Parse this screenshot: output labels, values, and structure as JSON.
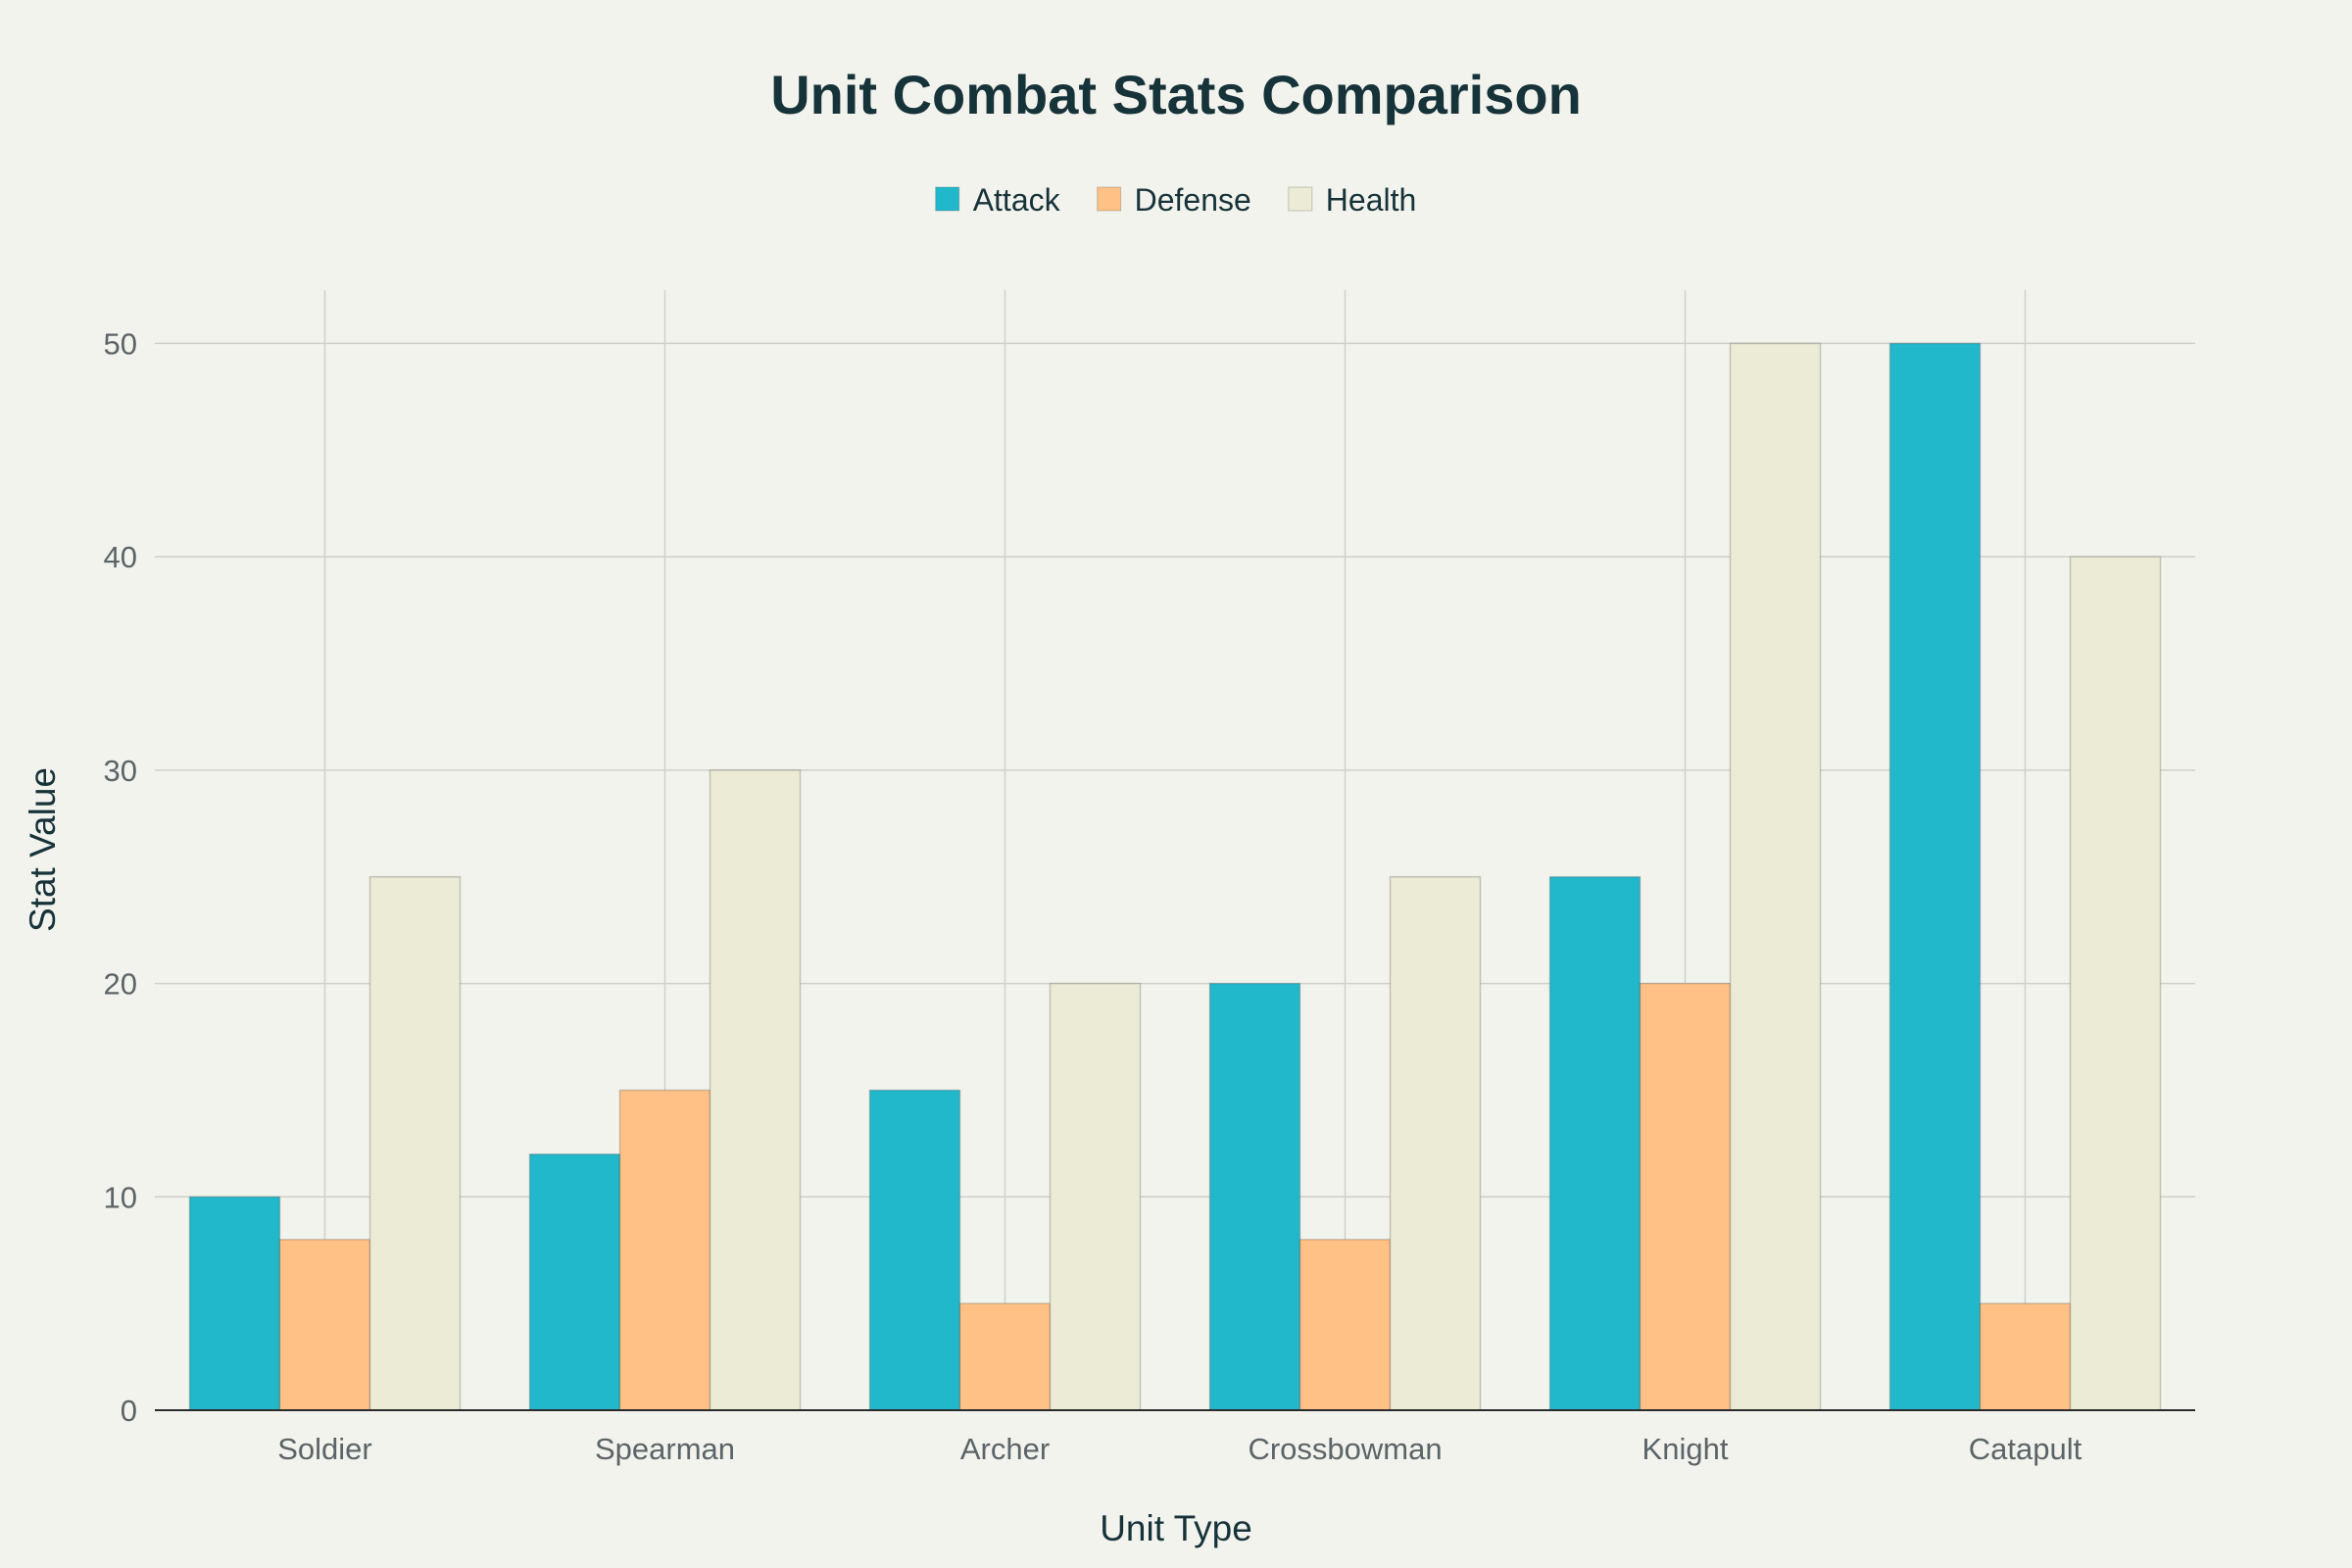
{
  "chart_data": {
    "type": "bar",
    "title": "Unit Combat Stats Comparison",
    "xlabel": "Unit Type",
    "ylabel": "Stat Value",
    "categories": [
      "Soldier",
      "Spearman",
      "Archer",
      "Crossbowman",
      "Knight",
      "Catapult"
    ],
    "series": [
      {
        "name": "Attack",
        "values": [
          10,
          12,
          15,
          20,
          25,
          50
        ],
        "color": "#21b8cc"
      },
      {
        "name": "Defense",
        "values": [
          8,
          15,
          5,
          8,
          20,
          5
        ],
        "color": "#ffc185"
      },
      {
        "name": "Health",
        "values": [
          25,
          30,
          20,
          25,
          50,
          40
        ],
        "color": "#ecebd5"
      }
    ],
    "ylim": [
      0,
      52.5
    ],
    "yticks": [
      0,
      10,
      20,
      30,
      40,
      50
    ],
    "grid": true,
    "legend_position": "top-center"
  }
}
